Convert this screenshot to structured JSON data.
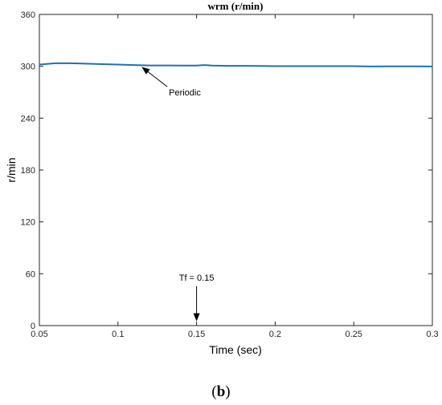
{
  "chart_data": {
    "type": "line",
    "title": "wrm (r/min)",
    "xlabel": "Time (sec)",
    "ylabel": "r/min",
    "xlim": [
      0.05,
      0.3
    ],
    "ylim": [
      0,
      360
    ],
    "xticks": [
      "0.05",
      "0.1",
      "0.15",
      "0.2",
      "0.25",
      "0.3"
    ],
    "yticks": [
      "0",
      "60",
      "120",
      "180",
      "240",
      "300",
      "360"
    ],
    "grid": false,
    "series": [
      {
        "color": "#1f6fb4",
        "x": [
          0.05,
          0.06,
          0.07,
          0.08,
          0.09,
          0.1,
          0.11,
          0.12,
          0.13,
          0.14,
          0.15,
          0.155,
          0.16,
          0.17,
          0.18,
          0.19,
          0.2,
          0.21,
          0.22,
          0.23,
          0.24,
          0.25,
          0.26,
          0.27,
          0.28,
          0.29,
          0.3
        ],
        "y": [
          302,
          303.5,
          303.5,
          303,
          302.5,
          302,
          301.5,
          301,
          301,
          300.8,
          300.8,
          301.5,
          300.8,
          300.5,
          300.5,
          300.3,
          300.2,
          300.2,
          300.2,
          300.2,
          300.2,
          300.2,
          299.8,
          300,
          300,
          300,
          299.8
        ]
      }
    ],
    "annotations": [
      {
        "text": "Periodic",
        "arrow_to": [
          0.115,
          300.5
        ]
      },
      {
        "text": "Tf = 0.15",
        "arrow_to": [
          0.15,
          5
        ]
      }
    ]
  },
  "caption": {
    "open": "(",
    "letter": "b",
    "close": ")"
  }
}
